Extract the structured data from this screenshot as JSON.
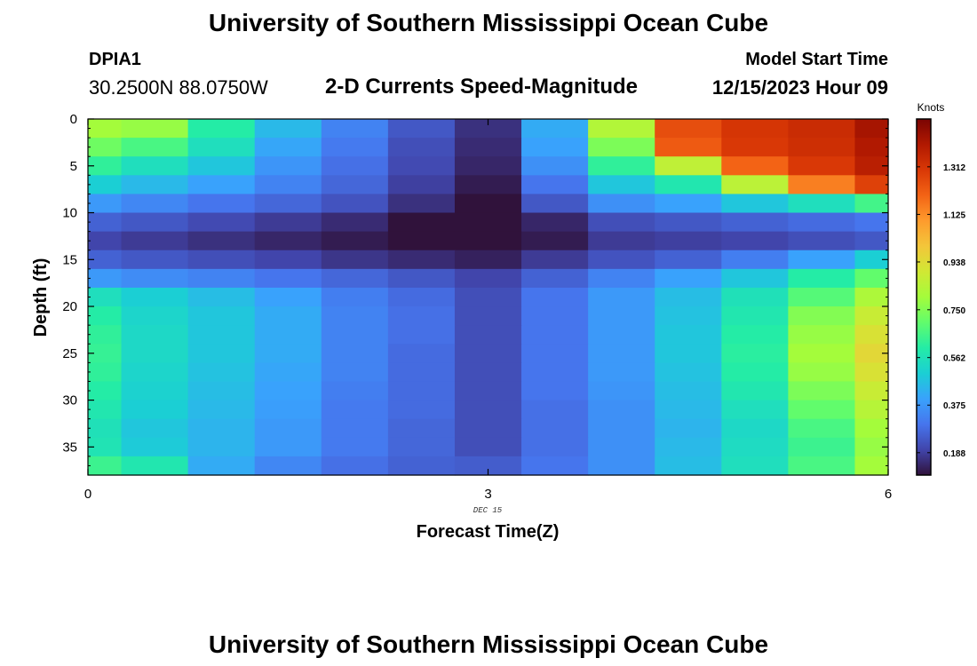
{
  "page": {
    "main_title": "University of Southern Mississippi Ocean Cube",
    "footer_title": "University of Southern Mississippi Ocean Cube"
  },
  "station": {
    "id": "DPIA1",
    "coords": "30.2500N  88.0750W"
  },
  "model": {
    "label": "Model Start Time",
    "time": "12/15/2023 Hour 09"
  },
  "chart_data": {
    "type": "heatmap",
    "title": "2-D Currents Speed-Magnitude",
    "xlabel": "Forecast Time(Z)",
    "ylabel": "Depth (ft)",
    "x_date_label": "DEC 15",
    "xlim": [
      0,
      6
    ],
    "ylim": [
      38,
      0
    ],
    "x_ticks": [
      0,
      3,
      6
    ],
    "y_ticks": [
      0,
      5,
      10,
      15,
      20,
      25,
      30,
      35
    ],
    "colorbar": {
      "unit": "Knots",
      "min": 0.1,
      "max": 1.5,
      "ticks": [
        "0.188",
        "0.375",
        "0.562",
        "0.750",
        "0.938",
        "1.125",
        "1.312"
      ],
      "stops": [
        "#30123b",
        "#4145ab",
        "#4675ed",
        "#39a2fc",
        "#1bcfd4",
        "#24eca6",
        "#61fc6c",
        "#a4fc3b",
        "#d1e834",
        "#f3c63a",
        "#fe9b2d",
        "#f36315",
        "#d93806",
        "#b11901",
        "#7a0403"
      ]
    },
    "time_columns": [
      0.0,
      0.25,
      0.75,
      1.25,
      1.75,
      2.25,
      2.75,
      3.25,
      3.75,
      4.25,
      4.75,
      5.25,
      5.75
    ],
    "depth_bins": [
      0,
      2,
      4,
      6,
      8,
      10,
      12,
      14,
      16,
      18,
      20,
      22,
      24,
      26,
      28,
      30,
      32,
      34,
      36,
      38
    ],
    "speed_knots": [
      [
        0.8,
        0.78,
        0.6,
        0.45,
        0.33,
        0.24,
        0.16,
        0.42,
        0.83,
        1.25,
        1.31,
        1.34,
        1.42
      ],
      [
        0.72,
        0.66,
        0.55,
        0.41,
        0.31,
        0.22,
        0.15,
        0.4,
        0.74,
        1.22,
        1.3,
        1.33,
        1.4
      ],
      [
        0.62,
        0.55,
        0.48,
        0.37,
        0.29,
        0.21,
        0.14,
        0.36,
        0.62,
        0.86,
        1.2,
        1.3,
        1.38
      ],
      [
        0.5,
        0.45,
        0.4,
        0.33,
        0.27,
        0.19,
        0.12,
        0.3,
        0.48,
        0.58,
        0.85,
        1.15,
        1.28
      ],
      [
        0.38,
        0.34,
        0.3,
        0.27,
        0.23,
        0.16,
        0.09,
        0.24,
        0.36,
        0.4,
        0.48,
        0.55,
        0.65
      ],
      [
        0.26,
        0.24,
        0.21,
        0.18,
        0.15,
        0.1,
        0.06,
        0.14,
        0.22,
        0.24,
        0.26,
        0.28,
        0.3
      ],
      [
        0.2,
        0.18,
        0.16,
        0.14,
        0.12,
        0.08,
        0.04,
        0.12,
        0.18,
        0.19,
        0.2,
        0.22,
        0.24
      ],
      [
        0.26,
        0.24,
        0.22,
        0.2,
        0.17,
        0.15,
        0.13,
        0.18,
        0.23,
        0.26,
        0.32,
        0.4,
        0.5
      ],
      [
        0.38,
        0.35,
        0.33,
        0.3,
        0.27,
        0.24,
        0.2,
        0.26,
        0.33,
        0.4,
        0.48,
        0.6,
        0.7
      ],
      [
        0.55,
        0.5,
        0.46,
        0.4,
        0.32,
        0.28,
        0.22,
        0.3,
        0.38,
        0.46,
        0.56,
        0.68,
        0.82
      ],
      [
        0.6,
        0.52,
        0.48,
        0.42,
        0.33,
        0.29,
        0.22,
        0.3,
        0.38,
        0.47,
        0.58,
        0.75,
        0.88
      ],
      [
        0.62,
        0.53,
        0.48,
        0.42,
        0.33,
        0.29,
        0.22,
        0.3,
        0.38,
        0.48,
        0.6,
        0.78,
        0.92
      ],
      [
        0.63,
        0.53,
        0.48,
        0.42,
        0.33,
        0.28,
        0.22,
        0.3,
        0.38,
        0.48,
        0.61,
        0.8,
        0.95
      ],
      [
        0.62,
        0.52,
        0.47,
        0.41,
        0.33,
        0.28,
        0.22,
        0.3,
        0.38,
        0.47,
        0.6,
        0.78,
        0.92
      ],
      [
        0.6,
        0.51,
        0.46,
        0.4,
        0.32,
        0.28,
        0.22,
        0.3,
        0.37,
        0.46,
        0.58,
        0.74,
        0.88
      ],
      [
        0.58,
        0.5,
        0.45,
        0.39,
        0.31,
        0.28,
        0.22,
        0.29,
        0.36,
        0.45,
        0.55,
        0.7,
        0.84
      ],
      [
        0.56,
        0.48,
        0.44,
        0.38,
        0.31,
        0.27,
        0.22,
        0.29,
        0.36,
        0.44,
        0.53,
        0.66,
        0.8
      ],
      [
        0.57,
        0.49,
        0.44,
        0.38,
        0.31,
        0.27,
        0.22,
        0.29,
        0.36,
        0.45,
        0.54,
        0.64,
        0.78
      ],
      [
        0.64,
        0.58,
        0.42,
        0.34,
        0.29,
        0.26,
        0.25,
        0.3,
        0.36,
        0.46,
        0.55,
        0.66,
        0.8
      ]
    ]
  }
}
